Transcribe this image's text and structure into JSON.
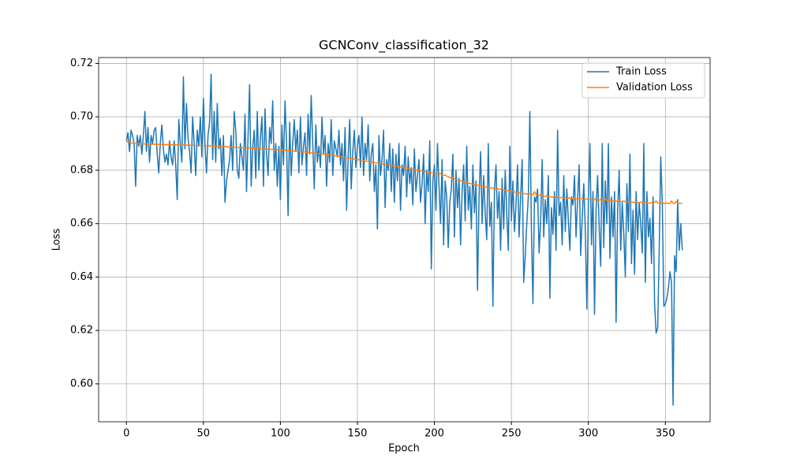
{
  "chart_data": {
    "type": "line",
    "title": "GCNConv_classification_32",
    "x_label": "Epoch",
    "y_label": "Loss",
    "x": [
      0,
      1,
      2,
      3,
      4,
      5,
      6,
      7,
      8,
      9,
      10,
      11,
      12,
      13,
      14,
      15,
      16,
      17,
      18,
      19,
      20,
      21,
      22,
      23,
      24,
      25,
      26,
      27,
      28,
      29,
      30,
      31,
      32,
      33,
      34,
      35,
      36,
      37,
      38,
      39,
      40,
      41,
      42,
      43,
      44,
      45,
      46,
      47,
      48,
      49,
      50,
      51,
      52,
      53,
      54,
      55,
      56,
      57,
      58,
      59,
      60,
      61,
      62,
      63,
      64,
      65,
      66,
      67,
      68,
      69,
      70,
      71,
      72,
      73,
      74,
      75,
      76,
      77,
      78,
      79,
      80,
      81,
      82,
      83,
      84,
      85,
      86,
      87,
      88,
      89,
      90,
      91,
      92,
      93,
      94,
      95,
      96,
      97,
      98,
      99,
      100,
      101,
      102,
      103,
      104,
      105,
      106,
      107,
      108,
      109,
      110,
      111,
      112,
      113,
      114,
      115,
      116,
      117,
      118,
      119,
      120,
      121,
      122,
      123,
      124,
      125,
      126,
      127,
      128,
      129,
      130,
      131,
      132,
      133,
      134,
      135,
      136,
      137,
      138,
      139,
      140,
      141,
      142,
      143,
      144,
      145,
      146,
      147,
      148,
      149,
      150,
      151,
      152,
      153,
      154,
      155,
      156,
      157,
      158,
      159,
      160,
      161,
      162,
      163,
      164,
      165,
      166,
      167,
      168,
      169,
      170,
      171,
      172,
      173,
      174,
      175,
      176,
      177,
      178,
      179,
      180,
      181,
      182,
      183,
      184,
      185,
      186,
      187,
      188,
      189,
      190,
      191,
      192,
      193,
      194,
      195,
      196,
      197,
      198,
      199,
      200,
      201,
      202,
      203,
      204,
      205,
      206,
      207,
      208,
      209,
      210,
      211,
      212,
      213,
      214,
      215,
      216,
      217,
      218,
      219,
      220,
      221,
      222,
      223,
      224,
      225,
      226,
      227,
      228,
      229,
      230,
      231,
      232,
      233,
      234,
      235,
      236,
      237,
      238,
      239,
      240,
      241,
      242,
      243,
      244,
      245,
      246,
      247,
      248,
      249,
      250,
      251,
      252,
      253,
      254,
      255,
      256,
      257,
      258,
      259,
      260,
      261,
      262,
      263,
      264,
      265,
      266,
      267,
      268,
      269,
      270,
      271,
      272,
      273,
      274,
      275,
      276,
      277,
      278,
      279,
      280,
      281,
      282,
      283,
      284,
      285,
      286,
      287,
      288,
      289,
      290,
      291,
      292,
      293,
      294,
      295,
      296,
      297,
      298,
      299,
      300,
      301,
      302,
      303,
      304,
      305,
      306,
      307,
      308,
      309,
      310,
      311,
      312,
      313,
      314,
      315,
      316,
      317,
      318,
      319,
      320,
      321,
      322,
      323,
      324,
      325,
      326,
      327,
      328,
      329,
      330,
      331,
      332,
      333,
      334,
      335,
      336,
      337,
      338,
      339,
      340,
      341,
      342,
      343,
      344,
      345,
      346,
      347,
      348,
      349,
      350,
      351,
      352,
      353,
      354,
      355,
      356,
      357,
      358,
      359,
      360,
      361
    ],
    "series": [
      {
        "name": "Train Loss",
        "color": "#1f77b4",
        "values": [
          0.691,
          0.694,
          0.687,
          0.695,
          0.693,
          0.69,
          0.674,
          0.693,
          0.689,
          0.693,
          0.686,
          0.693,
          0.702,
          0.687,
          0.696,
          0.683,
          0.693,
          0.69,
          0.695,
          0.696,
          0.686,
          0.679,
          0.69,
          0.697,
          0.688,
          0.683,
          0.686,
          0.682,
          0.691,
          0.685,
          0.682,
          0.691,
          0.682,
          0.669,
          0.699,
          0.69,
          0.683,
          0.715,
          0.688,
          0.705,
          0.692,
          0.687,
          0.679,
          0.7,
          0.69,
          0.678,
          0.695,
          0.689,
          0.7,
          0.685,
          0.707,
          0.69,
          0.679,
          0.693,
          0.698,
          0.716,
          0.684,
          0.702,
          0.683,
          0.705,
          0.688,
          0.692,
          0.678,
          0.693,
          0.668,
          0.676,
          0.68,
          0.684,
          0.693,
          0.68,
          0.702,
          0.695,
          0.68,
          0.677,
          0.69,
          0.685,
          0.68,
          0.701,
          0.672,
          0.693,
          0.712,
          0.674,
          0.688,
          0.695,
          0.677,
          0.702,
          0.68,
          0.692,
          0.7,
          0.674,
          0.703,
          0.686,
          0.678,
          0.696,
          0.69,
          0.706,
          0.68,
          0.69,
          0.674,
          0.689,
          0.669,
          0.697,
          0.682,
          0.706,
          0.69,
          0.663,
          0.698,
          0.678,
          0.69,
          0.699,
          0.687,
          0.695,
          0.679,
          0.7,
          0.682,
          0.689,
          0.694,
          0.678,
          0.701,
          0.686,
          0.708,
          0.69,
          0.673,
          0.697,
          0.683,
          0.689,
          0.681,
          0.7,
          0.686,
          0.693,
          0.674,
          0.69,
          0.683,
          0.699,
          0.678,
          0.691,
          0.688,
          0.685,
          0.695,
          0.682,
          0.69,
          0.676,
          0.696,
          0.665,
          0.685,
          0.699,
          0.673,
          0.687,
          0.695,
          0.681,
          0.689,
          0.693,
          0.681,
          0.7,
          0.678,
          0.69,
          0.684,
          0.697,
          0.676,
          0.686,
          0.69,
          0.672,
          0.682,
          0.658,
          0.693,
          0.678,
          0.684,
          0.695,
          0.666,
          0.684,
          0.68,
          0.69,
          0.672,
          0.688,
          0.668,
          0.686,
          0.676,
          0.69,
          0.665,
          0.682,
          0.678,
          0.689,
          0.67,
          0.685,
          0.675,
          0.681,
          0.667,
          0.688,
          0.672,
          0.678,
          0.684,
          0.668,
          0.675,
          0.686,
          0.66,
          0.68,
          0.672,
          0.691,
          0.643,
          0.676,
          0.682,
          0.665,
          0.69,
          0.674,
          0.66,
          0.684,
          0.652,
          0.676,
          0.67,
          0.651,
          0.668,
          0.673,
          0.686,
          0.655,
          0.68,
          0.666,
          0.677,
          0.652,
          0.672,
          0.682,
          0.661,
          0.689,
          0.665,
          0.674,
          0.658,
          0.682,
          0.664,
          0.676,
          0.635,
          0.67,
          0.687,
          0.66,
          0.678,
          0.664,
          0.654,
          0.69,
          0.659,
          0.668,
          0.629,
          0.672,
          0.682,
          0.662,
          0.672,
          0.65,
          0.677,
          0.658,
          0.68,
          0.664,
          0.65,
          0.689,
          0.661,
          0.676,
          0.657,
          0.667,
          0.682,
          0.655,
          0.67,
          0.684,
          0.638,
          0.648,
          0.66,
          0.67,
          0.702,
          0.658,
          0.63,
          0.67,
          0.668,
          0.673,
          0.649,
          0.661,
          0.684,
          0.655,
          0.669,
          0.66,
          0.678,
          0.632,
          0.666,
          0.656,
          0.672,
          0.65,
          0.695,
          0.663,
          0.668,
          0.652,
          0.678,
          0.657,
          0.673,
          0.661,
          0.65,
          0.67,
          0.667,
          0.678,
          0.655,
          0.669,
          0.682,
          0.648,
          0.662,
          0.675,
          0.658,
          0.628,
          0.668,
          0.69,
          0.652,
          0.672,
          0.626,
          0.665,
          0.678,
          0.659,
          0.644,
          0.69,
          0.651,
          0.676,
          0.66,
          0.69,
          0.647,
          0.67,
          0.655,
          0.672,
          0.623,
          0.665,
          0.68,
          0.65,
          0.668,
          0.656,
          0.64,
          0.675,
          0.657,
          0.686,
          0.645,
          0.665,
          0.641,
          0.672,
          0.654,
          0.668,
          0.66,
          0.649,
          0.69,
          0.638,
          0.672,
          0.655,
          0.662,
          0.645,
          0.67,
          0.63,
          0.619,
          0.621,
          0.65,
          0.685,
          0.668,
          0.629,
          0.63,
          0.632,
          0.636,
          0.642,
          0.638,
          0.592,
          0.648,
          0.642,
          0.669,
          0.65,
          0.66,
          0.65
        ]
      },
      {
        "name": "Validation Loss",
        "color": "#ff7f0e",
        "values": [
          0.691,
          0.6905,
          0.6905,
          0.6902,
          0.6902,
          0.6901,
          0.69,
          0.69,
          0.69,
          0.6899,
          0.6899,
          0.6899,
          0.6898,
          0.6899,
          0.6898,
          0.6898,
          0.6898,
          0.6897,
          0.6898,
          0.6897,
          0.6897,
          0.6897,
          0.6897,
          0.6896,
          0.6897,
          0.6896,
          0.6896,
          0.6896,
          0.6896,
          0.6895,
          0.6896,
          0.6895,
          0.6895,
          0.6895,
          0.6895,
          0.6895,
          0.6894,
          0.6895,
          0.6894,
          0.6894,
          0.6894,
          0.6894,
          0.6893,
          0.6894,
          0.6893,
          0.6893,
          0.6893,
          0.6892,
          0.6893,
          0.6892,
          0.6892,
          0.6892,
          0.6891,
          0.6892,
          0.6891,
          0.6891,
          0.689,
          0.6891,
          0.689,
          0.689,
          0.689,
          0.6889,
          0.6889,
          0.6889,
          0.6888,
          0.6888,
          0.6888,
          0.6887,
          0.6887,
          0.6887,
          0.6886,
          0.6886,
          0.6886,
          0.6885,
          0.6885,
          0.6885,
          0.6884,
          0.6884,
          0.6884,
          0.6883,
          0.6883,
          0.6883,
          0.6882,
          0.6882,
          0.6882,
          0.6881,
          0.6881,
          0.6881,
          0.688,
          0.688,
          0.688,
          0.6879,
          0.6879,
          0.6879,
          0.6878,
          0.6878,
          0.6878,
          0.6877,
          0.6877,
          0.6876,
          0.6876,
          0.6876,
          0.6875,
          0.6875,
          0.6874,
          0.6874,
          0.6873,
          0.6873,
          0.6872,
          0.6872,
          0.6871,
          0.6871,
          0.687,
          0.687,
          0.6869,
          0.6869,
          0.6868,
          0.6867,
          0.6867,
          0.6866,
          0.6865,
          0.6865,
          0.6864,
          0.6864,
          0.6863,
          0.6862,
          0.6862,
          0.6861,
          0.6861,
          0.686,
          0.686,
          0.6859,
          0.6858,
          0.6857,
          0.6856,
          0.6855,
          0.6854,
          0.6853,
          0.6852,
          0.6851,
          0.685,
          0.6849,
          0.6848,
          0.6847,
          0.6846,
          0.6845,
          0.6844,
          0.6843,
          0.6842,
          0.6841,
          0.684,
          0.6839,
          0.6838,
          0.6837,
          0.6836,
          0.6835,
          0.6834,
          0.6833,
          0.6832,
          0.6831,
          0.683,
          0.6829,
          0.6828,
          0.6827,
          0.6826,
          0.6825,
          0.6824,
          0.6823,
          0.6822,
          0.6821,
          0.682,
          0.6819,
          0.6818,
          0.6817,
          0.6816,
          0.6815,
          0.6814,
          0.6813,
          0.6812,
          0.6811,
          0.681,
          0.6809,
          0.6808,
          0.6807,
          0.6806,
          0.6805,
          0.6803,
          0.6802,
          0.6801,
          0.68,
          0.6799,
          0.6798,
          0.6797,
          0.6796,
          0.6795,
          0.6794,
          0.6793,
          0.6792,
          0.6791,
          0.679,
          0.6789,
          0.6788,
          0.6786,
          0.6785,
          0.6788,
          0.6782,
          0.6781,
          0.6782,
          0.6778,
          0.6776,
          0.6773,
          0.6771,
          0.677,
          0.6768,
          0.6766,
          0.6764,
          0.6763,
          0.6761,
          0.6759,
          0.6758,
          0.6756,
          0.6754,
          0.6752,
          0.6751,
          0.6749,
          0.6748,
          0.6746,
          0.6745,
          0.6744,
          0.6742,
          0.6741,
          0.674,
          0.6739,
          0.6738,
          0.6737,
          0.6736,
          0.6735,
          0.6734,
          0.6733,
          0.6732,
          0.6731,
          0.673,
          0.6729,
          0.6728,
          0.6727,
          0.6726,
          0.6725,
          0.6724,
          0.6723,
          0.6722,
          0.6721,
          0.672,
          0.6719,
          0.6718,
          0.6717,
          0.6716,
          0.6715,
          0.6714,
          0.6713,
          0.6712,
          0.6711,
          0.671,
          0.6712,
          0.6709,
          0.6708,
          0.672,
          0.6709,
          0.6706,
          0.6705,
          0.671,
          0.6704,
          0.6703,
          0.6702,
          0.6705,
          0.6701,
          0.67,
          0.67,
          0.6699,
          0.6702,
          0.6698,
          0.6698,
          0.6697,
          0.6697,
          0.6699,
          0.6696,
          0.6696,
          0.6695,
          0.6697,
          0.6695,
          0.6694,
          0.6694,
          0.6696,
          0.6693,
          0.6693,
          0.6692,
          0.6695,
          0.6692,
          0.6691,
          0.6691,
          0.6693,
          0.669,
          0.669,
          0.6692,
          0.6689,
          0.6689,
          0.6698,
          0.6688,
          0.6688,
          0.669,
          0.6687,
          0.6687,
          0.6693,
          0.6686,
          0.6686,
          0.6688,
          0.6685,
          0.6685,
          0.6687,
          0.6684,
          0.6684,
          0.6686,
          0.6683,
          0.6683,
          0.6685,
          0.6682,
          0.6682,
          0.6681,
          0.6684,
          0.6681,
          0.668,
          0.668,
          0.6682,
          0.6679,
          0.6679,
          0.6681,
          0.6678,
          0.6678,
          0.668,
          0.6679,
          0.6677,
          0.6677,
          0.6679,
          0.6676,
          0.668,
          0.6685,
          0.6678,
          0.6676,
          0.6677,
          0.6681,
          0.6676,
          0.6675,
          0.6678,
          0.6675,
          0.6676,
          0.6685,
          0.6676,
          0.6675,
          0.6683,
          0.6677,
          0.6676,
          0.6676,
          0.6675
        ]
      }
    ],
    "xlim": [
      -18.05,
      379.05
    ],
    "ylim": [
      0.5858,
      0.7222
    ],
    "xticks": [
      0,
      50,
      100,
      150,
      200,
      250,
      300,
      350
    ],
    "yticks": [
      {
        "value": 0.6,
        "label": "0.60"
      },
      0.62,
      0.64,
      0.66,
      0.68,
      {
        "value": 0.7,
        "label": "0.70"
      },
      0.72
    ],
    "grid": true,
    "legend": "upper right"
  }
}
